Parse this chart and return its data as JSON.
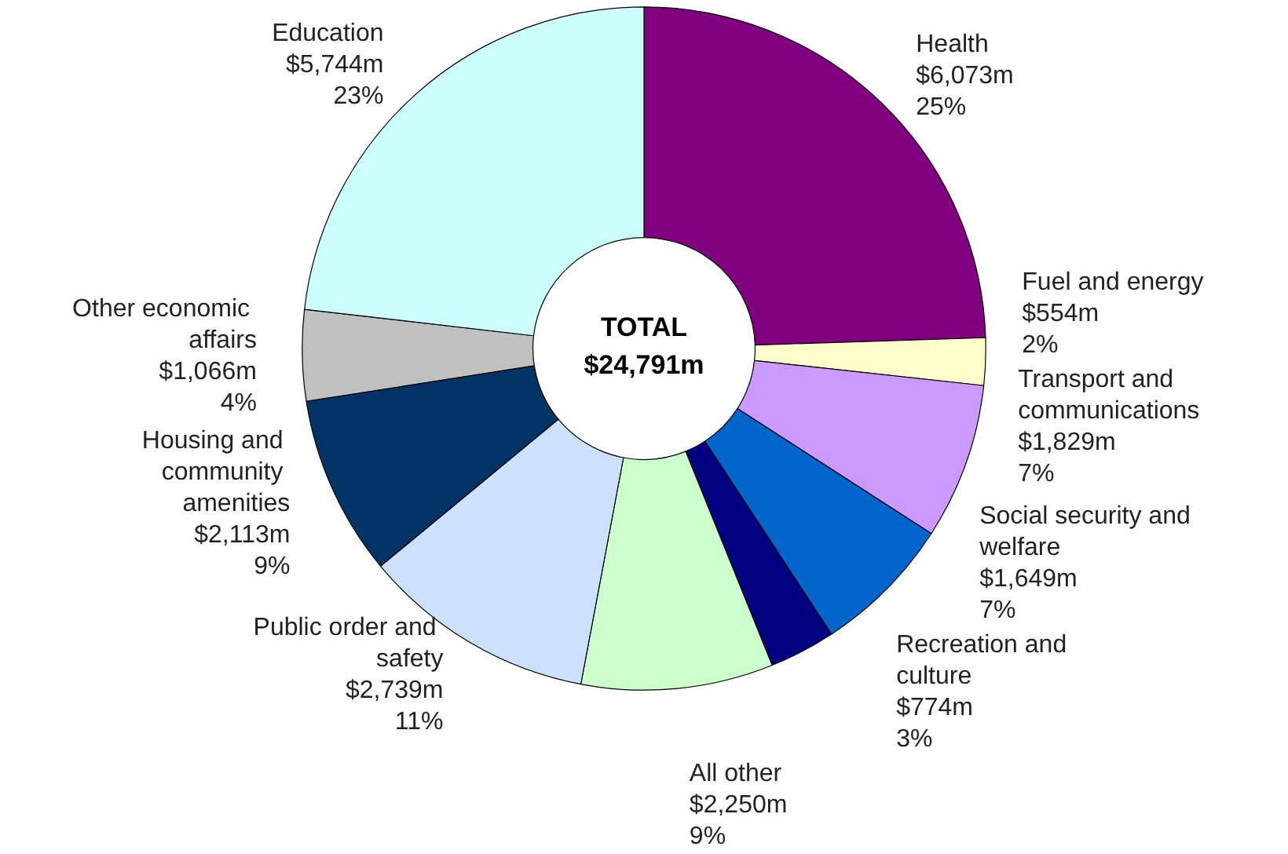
{
  "chart_data": {
    "type": "donut",
    "categories": [
      "Health",
      "Fuel and energy",
      "Transport and communications",
      "Social security and welfare",
      "Recreation and culture",
      "All other",
      "Public order and safety",
      "Housing and community amenities",
      "Other economic affairs",
      "Education"
    ],
    "values": [
      6073,
      554,
      1829,
      1649,
      774,
      2250,
      2739,
      2113,
      1066,
      5744
    ],
    "colors": [
      "#800080",
      "#ffffcc",
      "#cc99ff",
      "#0066cc",
      "#000080",
      "#ccffcc",
      "#cce0ff",
      "#003366",
      "#c0c0c0",
      "#ccffff"
    ],
    "value_labels": [
      "$6,073m",
      "$554m",
      "$1,829m",
      "$1,649m",
      "$774m",
      "$2,250m",
      "$2,739m",
      "$2,113m",
      "$1,066m",
      "$5,744m"
    ],
    "annotations": [
      "TOTAL",
      "$24,791m",
      {
        "text": "25%",
        "x": "Health"
      },
      {
        "text": "2%",
        "x": "Fuel and energy"
      },
      {
        "text": "7%",
        "x": "Transport and communications"
      },
      {
        "text": "7%",
        "x": "Social security and welfare"
      },
      {
        "text": "3%",
        "x": "Recreation and culture"
      },
      {
        "text": "9%",
        "x": "All other"
      },
      {
        "text": "11%",
        "x": "Public order and safety"
      },
      {
        "text": "9%",
        "x": "Housing and community amenities"
      },
      {
        "text": "4%",
        "x": "Other economic affairs"
      },
      {
        "text": "23%",
        "x": "Education"
      }
    ],
    "legend": false
  }
}
